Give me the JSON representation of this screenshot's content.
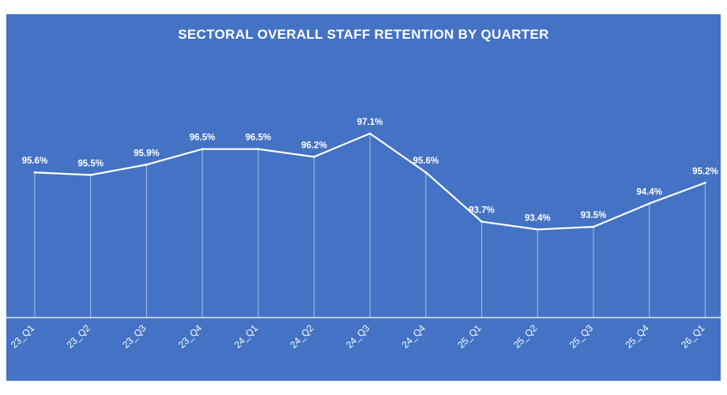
{
  "chart_data": {
    "type": "line",
    "title": "SECTORAL OVERALL STAFF RETENTION BY QUARTER",
    "xlabel": "",
    "ylabel": "",
    "categories": [
      "23_Q1",
      "23_Q2",
      "23_Q3",
      "23_Q4",
      "24_Q1",
      "24_Q2",
      "24_Q3",
      "24_Q4",
      "25_Q1",
      "25_Q2",
      "25_Q3",
      "25_Q4",
      "26_Q1"
    ],
    "values": [
      95.6,
      95.5,
      95.9,
      96.5,
      96.5,
      96.2,
      97.1,
      95.6,
      93.7,
      93.4,
      93.5,
      94.4,
      95.2
    ],
    "data_labels": [
      "95.6%",
      "95.5%",
      "95.9%",
      "96.5%",
      "96.5%",
      "96.2%",
      "97.1%",
      "95.6%",
      "93.7%",
      "93.4%",
      "93.5%",
      "94.4%",
      "95.2%"
    ],
    "ylim": [
      90.0,
      97.1
    ],
    "grid": false,
    "drop_lines": true,
    "legend": "none",
    "colors": {
      "background": "#4472c4",
      "line": "#ffffff",
      "text": "#ffffff"
    }
  }
}
